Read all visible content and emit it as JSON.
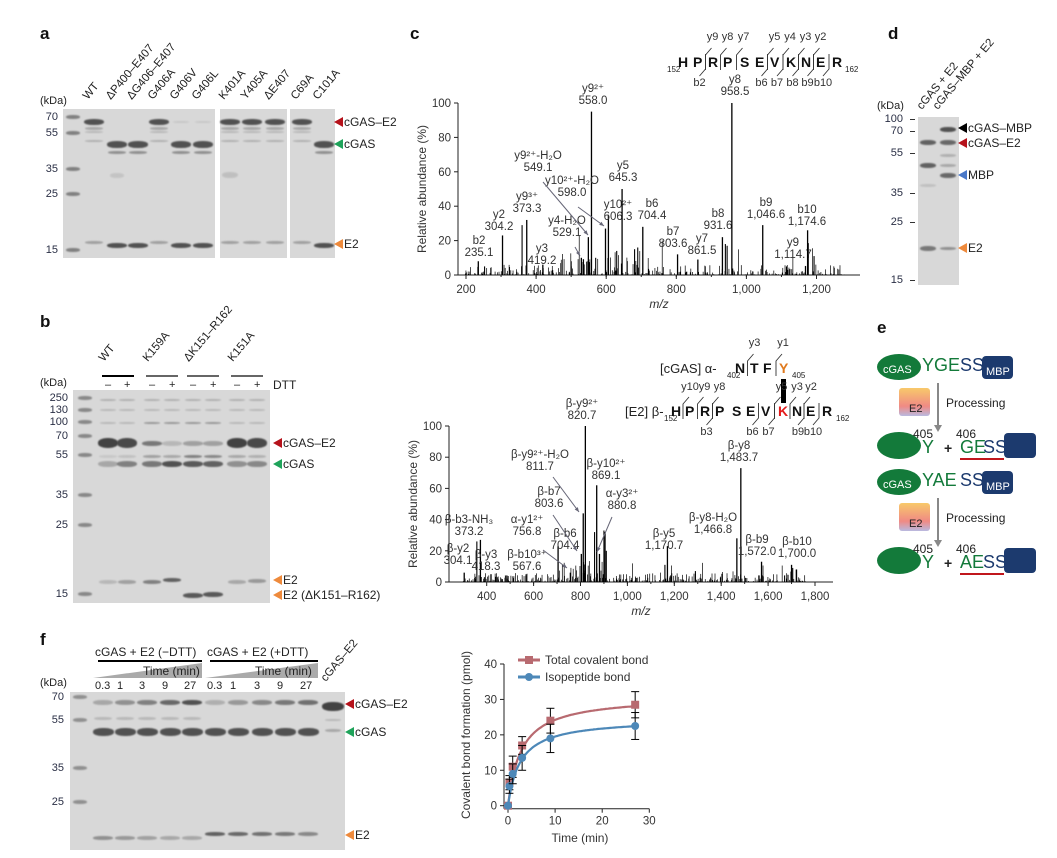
{
  "colors": {
    "cgas_e2": "#b5121b",
    "cgas": "#1fa35a",
    "e2": "#ee8a3c",
    "mbp": "#4a78c8",
    "cgas_mbp": "#000000",
    "total": "#b86a70",
    "iso": "#4d88b8",
    "cgas_shape": "#137a3a",
    "mbp_box": "#1c3a6e",
    "underline": "#c0161c",
    "k_red": "#e31b1b",
    "y_orange": "#e07a1e"
  },
  "panels": {
    "a": {
      "label": "a",
      "unit": "(kDa)",
      "markers": [
        "70",
        "55",
        "35",
        "25",
        "15"
      ],
      "lanes": [
        "WT",
        "ΔP400–E407",
        "ΔG406–E407",
        "G406A",
        "G406V",
        "G406L",
        "K401A",
        "Y405A",
        "ΔE407",
        "C69A",
        "C101A"
      ],
      "bands": [
        "cGAS–E2",
        "cGAS",
        "E2"
      ]
    },
    "b": {
      "label": "b",
      "unit": "(kDa)",
      "markers": [
        "250",
        "130",
        "100",
        "70",
        "55",
        "35",
        "25",
        "15"
      ],
      "groups": [
        "WT",
        "K159A",
        "ΔK151–R162",
        "K151A"
      ],
      "minus": "–",
      "plus": "+",
      "dtt": "DTT",
      "bands": [
        "cGAS–E2",
        "cGAS",
        "E2",
        "E2 (ΔK151–R162)"
      ]
    },
    "c": {
      "label": "c"
    },
    "d": {
      "label": "d",
      "unit": "(kDa)",
      "markers": [
        "100",
        "70",
        "55",
        "35",
        "25",
        "15"
      ],
      "lanes": [
        "cGAS + E2",
        "cGAS–MBP + E2"
      ],
      "bands": [
        "cGAS–MBP",
        "cGAS–E2",
        "MBP",
        "E2"
      ]
    },
    "e": {
      "label": "e",
      "cgas": "cGAS",
      "mbp": "MBP",
      "e2": "E2",
      "processing": "Processing",
      "plus": "+",
      "rows": [
        {
          "seq_green": "YGE",
          "seq_blue": "SS",
          "res1": "405",
          "res2": "406",
          "y": "Y",
          "prod_green": "GE",
          "prod_blue": "SS"
        },
        {
          "seq_green": "YAE",
          "seq_blue": "SS",
          "res1": "405",
          "res2": "406",
          "y": "Y",
          "prod_green": "AE",
          "prod_blue": "SS"
        }
      ]
    },
    "f": {
      "label": "f",
      "unit": "(kDa)",
      "markers": [
        "70",
        "55",
        "35",
        "25"
      ],
      "group1": "cGAS + E2 (−DTT)",
      "group2": "cGAS + E2 (+DTT)",
      "time": "Time (min)",
      "times": [
        "0.3",
        "1",
        "3",
        "9",
        "27",
        "0.3",
        "1",
        "3",
        "9",
        "27"
      ],
      "control_lane": "cGAS–E2",
      "bands": [
        "cGAS–E2",
        "cGAS",
        "E2"
      ]
    }
  },
  "peptides": {
    "top": {
      "start": "152",
      "end": "162",
      "seq": [
        "H",
        "P",
        "R",
        "P",
        "S",
        "E",
        "V",
        "K",
        "N",
        "E",
        "R"
      ],
      "y_ions": [
        "y9",
        "y8",
        "y7",
        "y5",
        "y4",
        "y3",
        "y2"
      ],
      "b_ions": [
        "b2",
        "b6",
        "b7",
        "b8",
        "b9",
        "b10"
      ]
    },
    "bottom": {
      "alpha_prefix": "[cGAS] α-",
      "alpha_start": "402",
      "alpha_end": "405",
      "alpha_seq": [
        "N",
        "T",
        "F",
        "Y"
      ],
      "alpha_y": [
        "y3",
        "y1"
      ],
      "beta_prefix": "[E2] β-",
      "beta_start": "152",
      "beta_end": "162",
      "beta_seq": [
        "H",
        "P",
        "R",
        "P",
        "S",
        "E",
        "V",
        "K",
        "N",
        "E",
        "R"
      ],
      "beta_y": [
        "y10",
        "y9",
        "y8",
        "y5",
        "y3",
        "y2"
      ],
      "beta_b": [
        "b3",
        "b6",
        "b7",
        "b9",
        "b10"
      ]
    }
  },
  "chart_data": [
    {
      "type": "bar",
      "title": "",
      "xlabel": "m/z",
      "ylabel": "Relative abundance (%)",
      "xlim": [
        190,
        1300
      ],
      "ylim": [
        0,
        100
      ],
      "x_ticks": [
        "200",
        "400",
        "600",
        "800",
        "1,000",
        "1,200"
      ],
      "y_ticks": [
        "0",
        "20",
        "40",
        "60",
        "80",
        "100"
      ],
      "peaks": [
        {
          "ion": "b2",
          "mz": "235.1",
          "y": 8
        },
        {
          "ion": "y2",
          "mz": "304.2",
          "y": 23
        },
        {
          "ion": "y9³⁺",
          "mz": "373.3",
          "y": 32
        },
        {
          "ion": "y3",
          "mz": "419.2",
          "y": 6
        },
        {
          "ion": "y4-H₂O",
          "mz": "529.1",
          "y": 10
        },
        {
          "ion": "y9²⁺-H₂O",
          "mz": "549.1",
          "y": 22
        },
        {
          "ion": "y9²⁺",
          "mz": "558.0",
          "y": 95
        },
        {
          "ion": "y10²⁺-H₂O",
          "mz": "598.0",
          "y": 27
        },
        {
          "ion": "y10²⁺",
          "mz": "606.3",
          "y": 35
        },
        {
          "ion": "y5",
          "mz": "645.3",
          "y": 50
        },
        {
          "ion": "b6",
          "mz": "704.4",
          "y": 28
        },
        {
          "ion": "b7",
          "mz": "803.6",
          "y": 12
        },
        {
          "ion": "y7",
          "mz": "861.5",
          "y": 9
        },
        {
          "ion": "b8",
          "mz": "931.6",
          "y": 22
        },
        {
          "ion": "y8",
          "mz": "958.5",
          "y": 100
        },
        {
          "ion": "b9",
          "mz": "1,046.6",
          "y": 29
        },
        {
          "ion": "y9",
          "mz": "1,114.7",
          "y": 5
        },
        {
          "ion": "b10",
          "mz": "1,174.6",
          "y": 26
        }
      ]
    },
    {
      "type": "bar",
      "title": "",
      "xlabel": "m/z",
      "ylabel": "Relative abundance (%)",
      "xlim": [
        270,
        1890
      ],
      "ylim": [
        0,
        100
      ],
      "x_ticks": [
        "400",
        "600",
        "800",
        "1,000",
        "1,200",
        "1,400",
        "1,600",
        "1,800"
      ],
      "y_ticks": [
        "0",
        "20",
        "40",
        "60",
        "80",
        "100"
      ],
      "peaks": [
        {
          "ion": "β-y2",
          "mz": "304.1",
          "y": 6
        },
        {
          "ion": "β-b3-NH₃",
          "mz": "373.2",
          "y": 27
        },
        {
          "ion": "β-y3",
          "mz": "418.3",
          "y": 5
        },
        {
          "ion": "β-b10³⁺",
          "mz": "567.6",
          "y": 4
        },
        {
          "ion": "α-y1²⁺",
          "mz": "756.8",
          "y": 6
        },
        {
          "ion": "β-b6",
          "mz": "704.4",
          "y": 23
        },
        {
          "ion": "β-b7",
          "mz": "803.6",
          "y": 18
        },
        {
          "ion": "β-y9²⁺-H₂O",
          "mz": "811.7",
          "y": 44
        },
        {
          "ion": "β-y9²⁺",
          "mz": "820.7",
          "y": 100
        },
        {
          "ion": "β-y10²⁺",
          "mz": "869.1",
          "y": 62
        },
        {
          "ion": "α-y3²⁺",
          "mz": "880.8",
          "y": 18
        },
        {
          "ion": "β-y5",
          "mz": "1,170.7",
          "y": 23
        },
        {
          "ion": "β-y8-H₂O",
          "mz": "1,466.8",
          "y": 28
        },
        {
          "ion": "β-y8",
          "mz": "1,483.7",
          "y": 73
        },
        {
          "ion": "β-b9",
          "mz": "1,572.0",
          "y": 13
        },
        {
          "ion": "β-b10",
          "mz": "1,700.0",
          "y": 11
        }
      ]
    },
    {
      "type": "line",
      "title": "",
      "xlabel": "Time (min)",
      "ylabel": "Covalent bond formation (pmol)",
      "xlim": [
        0,
        30
      ],
      "ylim": [
        0,
        40
      ],
      "x_ticks": [
        "0",
        "10",
        "20",
        "30"
      ],
      "y_ticks": [
        "0",
        "10",
        "20",
        "30",
        "40"
      ],
      "legend": "top",
      "series": [
        {
          "name": "Total covalent bond",
          "x": [
            0,
            0.3,
            1,
            3,
            9,
            27
          ],
          "y": [
            0,
            6.5,
            11,
            17,
            24,
            28.5
          ],
          "err": [
            0,
            2,
            3,
            2.5,
            3.5,
            3.7
          ]
        },
        {
          "name": "Isopeptide bond",
          "x": [
            0,
            0.3,
            1,
            3,
            9,
            27
          ],
          "y": [
            0,
            5.5,
            9,
            13.5,
            19,
            22.5
          ],
          "err": [
            0,
            2,
            2.8,
            3.5,
            4,
            3.8
          ]
        }
      ]
    }
  ]
}
